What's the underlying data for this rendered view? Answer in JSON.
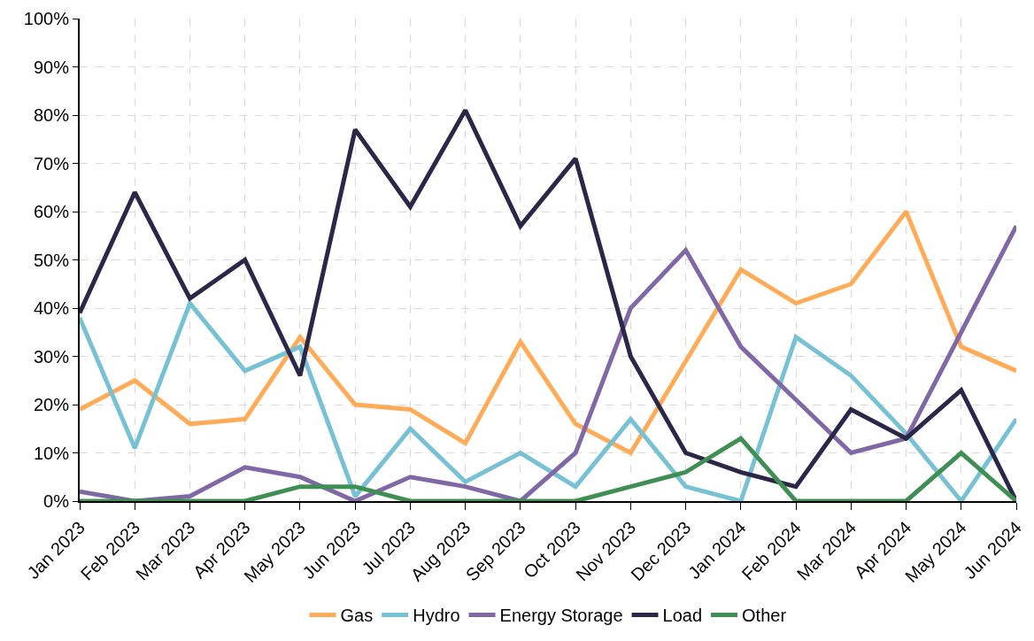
{
  "chart_data": {
    "type": "line",
    "categories": [
      "Jan 2023",
      "Feb 2023",
      "Mar 2023",
      "Apr 2023",
      "May 2023",
      "Jun 2023",
      "Jul 2023",
      "Aug 2023",
      "Sep 2023",
      "Oct 2023",
      "Nov 2023",
      "Dec 2023",
      "Jan 2024",
      "Feb 2024",
      "Mar 2024",
      "Apr 2024",
      "May 2024",
      "Jun 2024"
    ],
    "series": [
      {
        "name": "Gas",
        "color": "#ffab57",
        "values": [
          19,
          25,
          16,
          17,
          34,
          20,
          19,
          12,
          33,
          16,
          10,
          29,
          48,
          41,
          45,
          60,
          32,
          27
        ]
      },
      {
        "name": "Hydro",
        "color": "#77c1d5",
        "values": [
          38,
          11,
          41,
          27,
          32,
          1,
          15,
          4,
          10,
          3,
          17,
          3,
          0,
          34,
          26,
          14,
          0,
          17
        ]
      },
      {
        "name": "Energy Storage",
        "color": "#8068a6",
        "values": [
          2,
          0,
          1,
          7,
          5,
          0,
          5,
          3,
          0,
          10,
          40,
          52,
          32,
          21,
          10,
          13,
          35,
          57
        ]
      },
      {
        "name": "Load",
        "color": "#2b2748",
        "values": [
          39,
          64,
          42,
          50,
          26,
          77,
          61,
          81,
          57,
          71,
          30,
          10,
          6,
          3,
          19,
          13,
          23,
          0
        ]
      },
      {
        "name": "Other",
        "color": "#3f8f55",
        "values": [
          0,
          0,
          0,
          0,
          3,
          3,
          0,
          0,
          0,
          0,
          3,
          6,
          13,
          0,
          0,
          0,
          10,
          0
        ]
      }
    ],
    "ylim": [
      0,
      100
    ],
    "yticks": [
      {
        "value": 0,
        "label": "0%"
      },
      {
        "value": 10,
        "label": "10%"
      },
      {
        "value": 20,
        "label": "20%"
      },
      {
        "value": 30,
        "label": "30%"
      },
      {
        "value": 40,
        "label": "40%"
      },
      {
        "value": 50,
        "label": "50%"
      },
      {
        "value": 60,
        "label": "60%"
      },
      {
        "value": 70,
        "label": "70%"
      },
      {
        "value": 80,
        "label": "80%"
      },
      {
        "value": 90,
        "label": "90%"
      },
      {
        "value": 100,
        "label": "100%"
      }
    ],
    "grid": true,
    "legend": "bottom",
    "marker": "none",
    "line_style": "solid"
  }
}
